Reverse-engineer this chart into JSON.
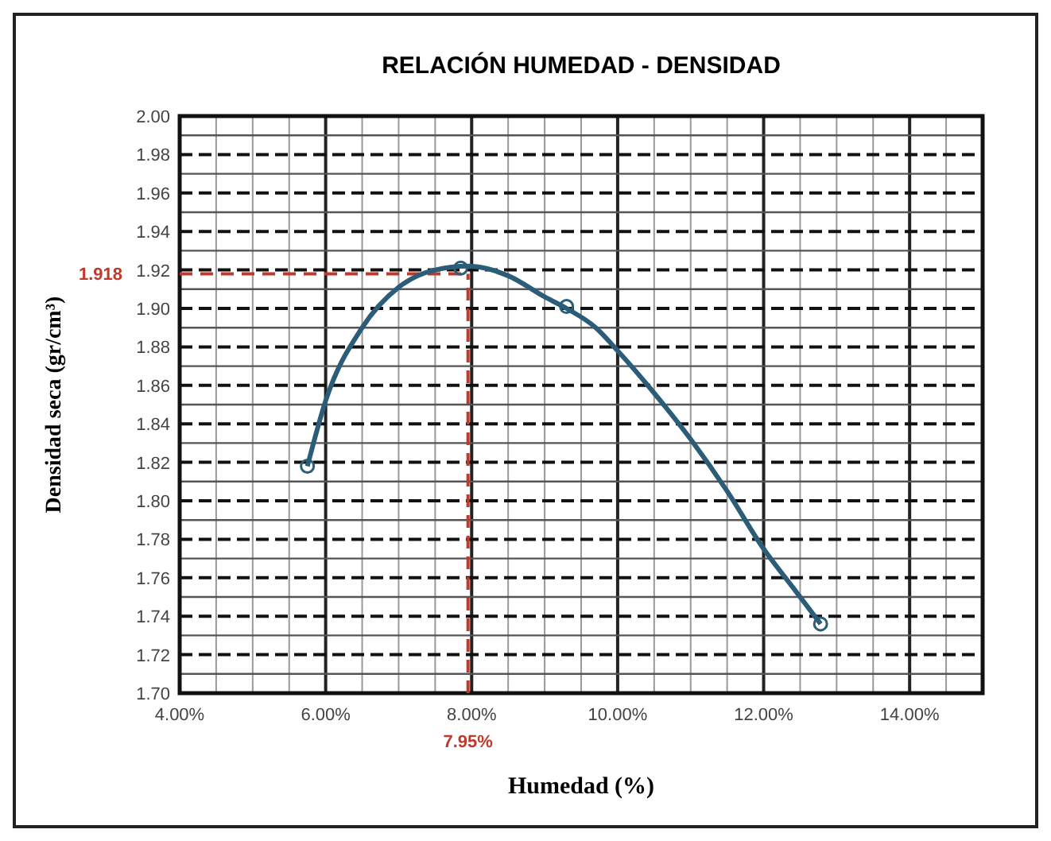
{
  "chart_data": {
    "type": "scatter",
    "title": "RELACIÓN HUMEDAD - DENSIDAD",
    "xlabel": "Humedad (%)",
    "ylabel": "Densidad seca (gr/cm³)",
    "xlim": [
      4,
      15
    ],
    "ylim": [
      1.7,
      2.0
    ],
    "xticks": [
      {
        "value": 4,
        "label": "4.00%"
      },
      {
        "value": 6,
        "label": "6.00%"
      },
      {
        "value": 8,
        "label": "8.00%"
      },
      {
        "value": 10,
        "label": "10.00%"
      },
      {
        "value": 12,
        "label": "12.00%"
      },
      {
        "value": 14,
        "label": "14.00%"
      }
    ],
    "yticks": [
      {
        "value": 1.7,
        "label": "1.70"
      },
      {
        "value": 1.72,
        "label": "1.72"
      },
      {
        "value": 1.74,
        "label": "1.74"
      },
      {
        "value": 1.76,
        "label": "1.76"
      },
      {
        "value": 1.78,
        "label": "1.78"
      },
      {
        "value": 1.8,
        "label": "1.80"
      },
      {
        "value": 1.82,
        "label": "1.82"
      },
      {
        "value": 1.84,
        "label": "1.84"
      },
      {
        "value": 1.86,
        "label": "1.86"
      },
      {
        "value": 1.88,
        "label": "1.88"
      },
      {
        "value": 1.9,
        "label": "1.90"
      },
      {
        "value": 1.92,
        "label": "1.92"
      },
      {
        "value": 1.94,
        "label": "1.94"
      },
      {
        "value": 1.96,
        "label": "1.96"
      },
      {
        "value": 1.98,
        "label": "1.98"
      },
      {
        "value": 2.0,
        "label": "2.00"
      }
    ],
    "grid": true,
    "marker": "circle",
    "series": [
      {
        "type": "line",
        "color": "#2b5d78",
        "marker": "none",
        "x": [
          5.75,
          6.0,
          6.5,
          7.0,
          7.5,
          7.95,
          8.5,
          9.0,
          9.3,
          9.7,
          10.0,
          10.5,
          11.0,
          11.5,
          12.0,
          12.4,
          12.78
        ],
        "values": [
          1.818,
          1.852,
          1.89,
          1.911,
          1.92,
          1.922,
          1.917,
          1.906,
          1.9,
          1.89,
          1.878,
          1.856,
          1.832,
          1.805,
          1.775,
          1.755,
          1.736
        ]
      },
      {
        "color": "#2b5d78",
        "x": [
          5.75,
          7.85,
          9.3,
          12.78
        ],
        "values": [
          1.818,
          1.921,
          1.901,
          1.736
        ]
      }
    ],
    "ref_lines": [
      {
        "axis": "y",
        "value": 1.918,
        "label": "1.918",
        "color": "#c0392b",
        "line_style": "dashed"
      },
      {
        "axis": "x",
        "value": 7.95,
        "label": "7.95%",
        "color": "#c0392b",
        "line_style": "dashed"
      }
    ]
  }
}
